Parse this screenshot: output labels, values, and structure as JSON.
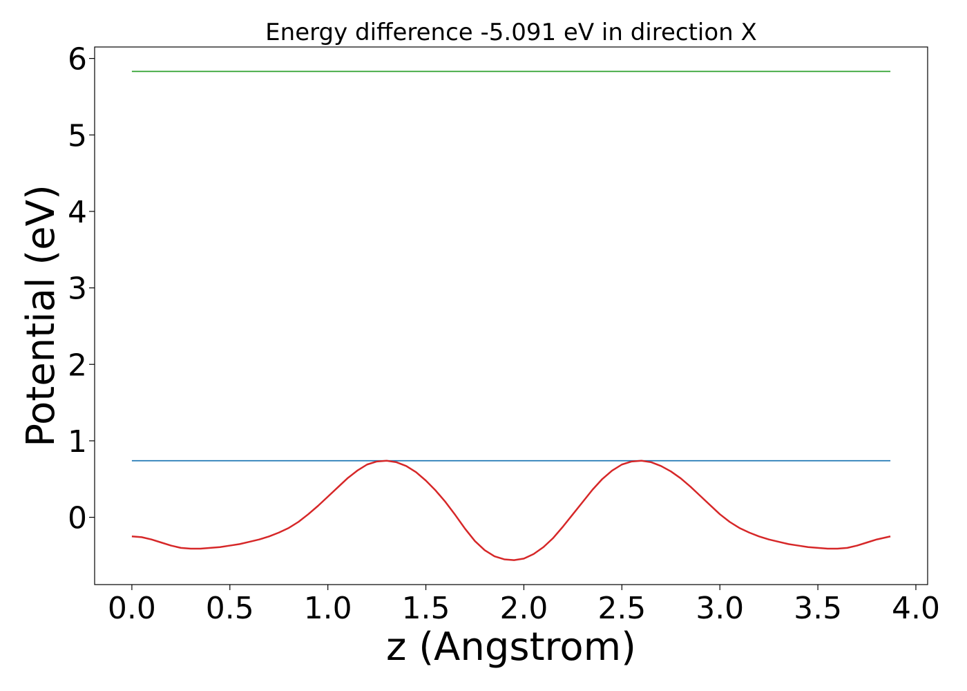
{
  "chart_data": {
    "type": "line",
    "title": "Energy difference -5.091 eV in direction X",
    "xlabel": "z (Angstrom)",
    "ylabel": "Potential (eV)",
    "xlim": [
      -0.19,
      4.06
    ],
    "ylim": [
      -0.88,
      6.15
    ],
    "xticks": [
      0.0,
      0.5,
      1.0,
      1.5,
      2.0,
      2.5,
      3.0,
      3.5,
      4.0
    ],
    "xtick_labels": [
      "0.0",
      "0.5",
      "1.0",
      "1.5",
      "2.0",
      "2.5",
      "3.0",
      "3.5",
      "4.0"
    ],
    "yticks": [
      0,
      1,
      2,
      3,
      4,
      5,
      6
    ],
    "ytick_labels": [
      "0",
      "1",
      "2",
      "3",
      "4",
      "5",
      "6"
    ],
    "grid": false,
    "series": [
      {
        "color": "#2ca02c",
        "x": [
          0.0,
          3.87
        ],
        "y": [
          5.83,
          5.83
        ]
      },
      {
        "color": "#1f77b4",
        "x": [
          0.0,
          3.87
        ],
        "y": [
          0.74,
          0.74
        ]
      },
      {
        "color": "#d62728",
        "x": [
          0.0,
          0.05,
          0.1,
          0.15,
          0.2,
          0.25,
          0.3,
          0.35,
          0.4,
          0.45,
          0.5,
          0.55,
          0.6,
          0.65,
          0.7,
          0.75,
          0.8,
          0.85,
          0.9,
          0.95,
          1.0,
          1.05,
          1.1,
          1.15,
          1.2,
          1.25,
          1.3,
          1.35,
          1.4,
          1.45,
          1.5,
          1.55,
          1.6,
          1.65,
          1.7,
          1.75,
          1.8,
          1.85,
          1.9,
          1.95,
          2.0,
          2.05,
          2.1,
          2.15,
          2.2,
          2.25,
          2.3,
          2.35,
          2.4,
          2.45,
          2.5,
          2.55,
          2.6,
          2.65,
          2.7,
          2.75,
          2.8,
          2.85,
          2.9,
          2.95,
          3.0,
          3.05,
          3.1,
          3.15,
          3.2,
          3.25,
          3.3,
          3.35,
          3.4,
          3.45,
          3.5,
          3.55,
          3.6,
          3.65,
          3.7,
          3.75,
          3.8,
          3.87
        ],
        "y": [
          -0.25,
          -0.26,
          -0.29,
          -0.33,
          -0.37,
          -0.4,
          -0.41,
          -0.41,
          -0.4,
          -0.39,
          -0.37,
          -0.35,
          -0.32,
          -0.29,
          -0.25,
          -0.2,
          -0.14,
          -0.06,
          0.04,
          0.15,
          0.27,
          0.39,
          0.51,
          0.61,
          0.69,
          0.73,
          0.74,
          0.72,
          0.67,
          0.59,
          0.48,
          0.35,
          0.2,
          0.03,
          -0.15,
          -0.31,
          -0.43,
          -0.51,
          -0.55,
          -0.56,
          -0.54,
          -0.48,
          -0.39,
          -0.27,
          -0.12,
          0.04,
          0.2,
          0.36,
          0.5,
          0.61,
          0.69,
          0.73,
          0.74,
          0.72,
          0.67,
          0.6,
          0.51,
          0.4,
          0.28,
          0.16,
          0.04,
          -0.06,
          -0.14,
          -0.2,
          -0.25,
          -0.29,
          -0.32,
          -0.35,
          -0.37,
          -0.39,
          -0.4,
          -0.41,
          -0.41,
          -0.4,
          -0.37,
          -0.33,
          -0.29,
          -0.25
        ]
      }
    ]
  }
}
